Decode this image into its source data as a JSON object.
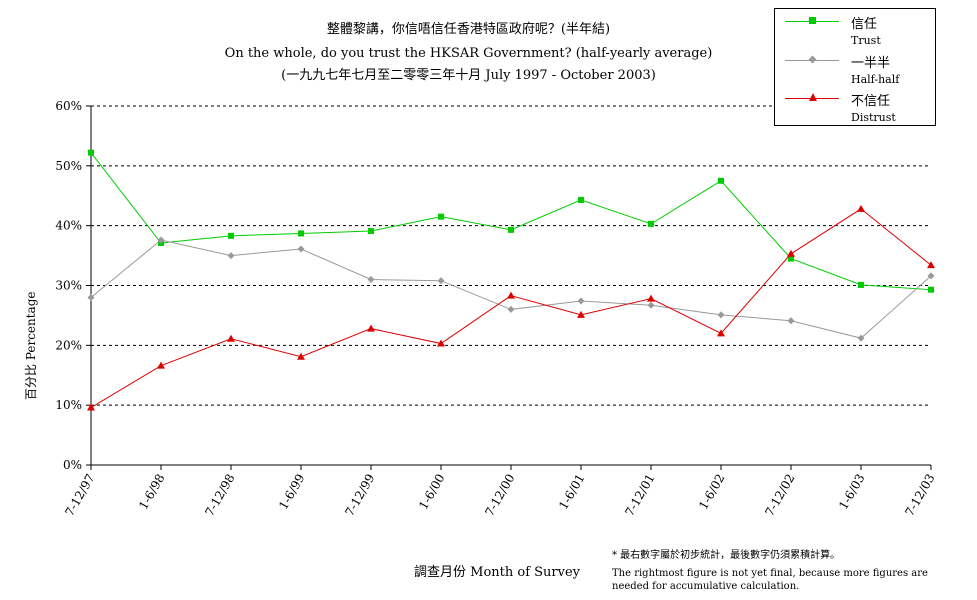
{
  "chart_data": {
    "type": "line",
    "title": "整體黎講，你信唔信任香港特區政府呢？(半年結)",
    "subtitle": "On the whole, do you trust the HKSAR Government? (half-yearly average)",
    "subtitle2": "(一九九七年七月至二零零三年十月 July 1997 - October 2003)",
    "xlabel": "調查月份 Month of Survey",
    "ylabel": "百分比 Percentage",
    "categories": [
      "7-12/97",
      "1-6/98",
      "7-12/98",
      "1-6/99",
      "7-12/99",
      "1-6/00",
      "7-12/00",
      "1-6/01",
      "7-12/01",
      "1-6/02",
      "7-12/02",
      "1-6/03",
      "7-12/03"
    ],
    "ylim": [
      0,
      60
    ],
    "yticks": [
      "0%",
      "10%",
      "20%",
      "30%",
      "40%",
      "50%",
      "60%"
    ],
    "grid": true,
    "legend_position": "top-right",
    "series": [
      {
        "name": "信任",
        "name_en": "Trust",
        "color": "#00cc00",
        "marker": "square",
        "values": [
          52.2,
          37.1,
          38.3,
          38.7,
          39.1,
          41.5,
          39.3,
          44.3,
          40.3,
          47.5,
          34.5,
          30.1,
          29.3
        ]
      },
      {
        "name": "一半半",
        "name_en": "Half-half",
        "color": "#999999",
        "marker": "diamond",
        "values": [
          28.0,
          37.6,
          35.0,
          36.1,
          31.0,
          30.8,
          26.0,
          27.4,
          26.7,
          25.1,
          24.1,
          21.2,
          31.6
        ]
      },
      {
        "name": "不信任",
        "name_en": "Distrust",
        "color": "#dd0000",
        "marker": "triangle",
        "values": [
          9.6,
          16.6,
          21.1,
          18.1,
          22.8,
          20.3,
          28.3,
          25.1,
          27.8,
          22.0,
          35.3,
          42.8,
          33.4
        ]
      }
    ]
  },
  "notes": {
    "line1": "* 最右數字屬於初步統計，最後數字仍須累積計算。",
    "line2": "The rightmost figure is not yet final, because more figures are",
    "line3": "needed for accumulative calculation."
  }
}
